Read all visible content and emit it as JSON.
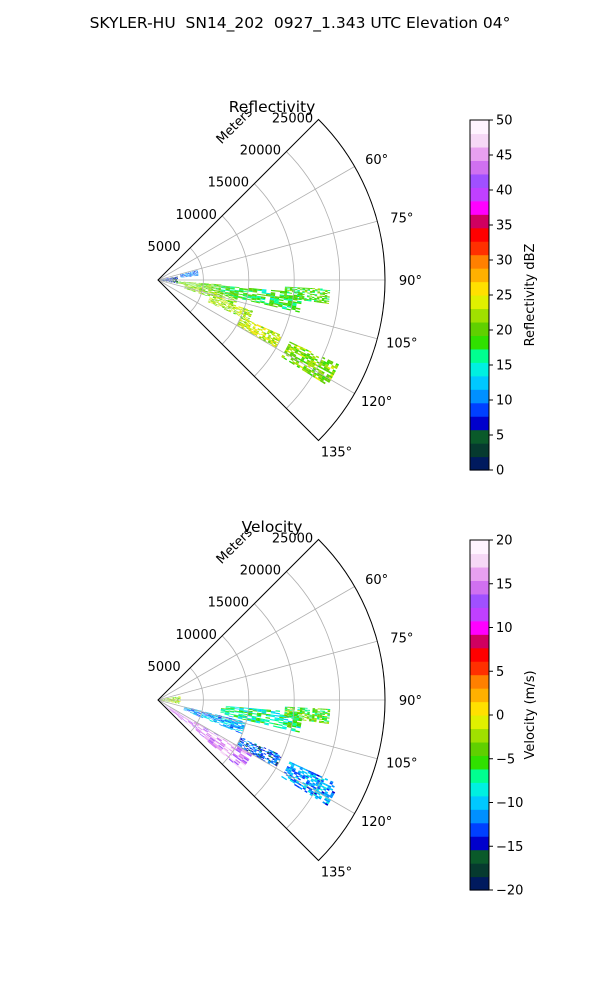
{
  "suptitle": "SKYLER-HU  SN14_202  0927_1.343 UTC Elevation 04°",
  "chart_data": [
    {
      "type": "polar-ppi",
      "title": "Reflectivity",
      "range_label": "Meters",
      "range_ticks": [
        5000,
        10000,
        15000,
        20000,
        25000
      ],
      "range_tick_labels": [
        "5000",
        "10000",
        "15000",
        "20000",
        "25000"
      ],
      "range_max": 25000,
      "azimuth_range": [
        45,
        135
      ],
      "azimuth_ticks": [
        60,
        75,
        90,
        105,
        120,
        135
      ],
      "azimuth_tick_labels": [
        "60°",
        "75°",
        "90°",
        "105°",
        "120°",
        "135°"
      ],
      "grid": true,
      "colorbar": {
        "label": "Reflectivity dBZ",
        "min": 0,
        "max": 50,
        "ticks": [
          0,
          5,
          10,
          15,
          20,
          25,
          30,
          35,
          40,
          45,
          50
        ],
        "tick_labels": [
          "0",
          "5",
          "10",
          "15",
          "20",
          "25",
          "30",
          "35",
          "40",
          "45",
          "50"
        ],
        "colormap": [
          "#001a5e",
          "#063a2f",
          "#0a5a2a",
          "#0000cc",
          "#0040ff",
          "#0090ff",
          "#00c8ff",
          "#00f0e0",
          "#00ff90",
          "#30e000",
          "#60d000",
          "#a0e000",
          "#e0f000",
          "#ffe000",
          "#ffb000",
          "#ff8000",
          "#ff3000",
          "#ff0000",
          "#d00060",
          "#ff00ff",
          "#c040ff",
          "#a050ff",
          "#d070f0",
          "#e8a0f0",
          "#f6d8f6",
          "#fff4ff"
        ]
      },
      "echo_regions": [
        {
          "az": [
            94,
            100
          ],
          "r": [
            2000,
            7000
          ],
          "value": 20
        },
        {
          "az": [
            100,
            108
          ],
          "r": [
            3000,
            9000
          ],
          "value": 21
        },
        {
          "az": [
            95,
            103
          ],
          "r": [
            7000,
            16000
          ],
          "value": 18
        },
        {
          "az": [
            93,
            98
          ],
          "r": [
            14000,
            19000
          ],
          "value": 19
        },
        {
          "az": [
            108,
            114
          ],
          "r": [
            6000,
            11000
          ],
          "value": 22
        },
        {
          "az": [
            114,
            120
          ],
          "r": [
            10000,
            15000
          ],
          "value": 23
        },
        {
          "az": [
            115,
            122
          ],
          "r": [
            16000,
            22000
          ],
          "value": 21
        },
        {
          "az": [
            76,
            84
          ],
          "r": [
            2500,
            4500
          ],
          "value": 10
        },
        {
          "az": [
            80,
            100
          ],
          "r": [
            300,
            2200
          ],
          "value": 6
        }
      ]
    },
    {
      "type": "polar-ppi",
      "title": "Velocity",
      "range_label": "Meters",
      "range_ticks": [
        5000,
        10000,
        15000,
        20000,
        25000
      ],
      "range_tick_labels": [
        "5000",
        "10000",
        "15000",
        "20000",
        "25000"
      ],
      "range_max": 25000,
      "azimuth_range": [
        45,
        135
      ],
      "azimuth_ticks": [
        60,
        75,
        90,
        105,
        120,
        135
      ],
      "azimuth_tick_labels": [
        "60°",
        "75°",
        "90°",
        "105°",
        "120°",
        "135°"
      ],
      "grid": true,
      "colorbar": {
        "label": "Velocity (m/s)",
        "min": -20,
        "max": 20,
        "ticks": [
          -20,
          -15,
          -10,
          -5,
          0,
          5,
          10,
          15,
          20
        ],
        "tick_labels": [
          "−20",
          "−15",
          "−10",
          "−5",
          "0",
          "5",
          "10",
          "15",
          "20"
        ],
        "colormap": [
          "#001a5e",
          "#063a2f",
          "#0a5a2a",
          "#0000cc",
          "#0040ff",
          "#0090ff",
          "#00c8ff",
          "#00f0e0",
          "#00ff90",
          "#30e000",
          "#60d000",
          "#a0e000",
          "#e0f000",
          "#ffe000",
          "#ffb000",
          "#ff8000",
          "#ff3000",
          "#ff0000",
          "#d00060",
          "#ff00ff",
          "#c040ff",
          "#a050ff",
          "#d070f0",
          "#e8a0f0",
          "#f6d8f6",
          "#fff4ff"
        ]
      },
      "echo_regions": [
        {
          "az": [
            120,
            130
          ],
          "r": [
            1000,
            12000
          ],
          "value": 16
        },
        {
          "az": [
            104,
            112
          ],
          "r": [
            3000,
            10000
          ],
          "value": -11
        },
        {
          "az": [
            95,
            103
          ],
          "r": [
            7000,
            16000
          ],
          "value": -7
        },
        {
          "az": [
            93,
            98
          ],
          "r": [
            14000,
            19000
          ],
          "value": -5
        },
        {
          "az": [
            114,
            120
          ],
          "r": [
            10000,
            15000
          ],
          "value": -13
        },
        {
          "az": [
            115,
            122
          ],
          "r": [
            16000,
            22000
          ],
          "value": -11
        },
        {
          "az": [
            80,
            100
          ],
          "r": [
            300,
            2500
          ],
          "value": -3
        }
      ]
    }
  ]
}
